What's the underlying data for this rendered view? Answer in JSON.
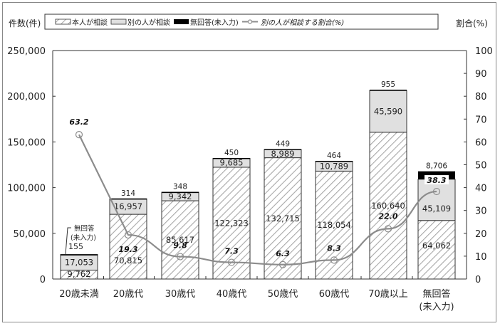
{
  "chart_data": {
    "type": "bar",
    "subtype": "stacked bar + line (dual axis)",
    "title": "",
    "ylabel_left": "件数(件)",
    "ylabel_right": "割合(%)",
    "xlabel": "",
    "ylim_left": [
      0,
      250000
    ],
    "ylim_right": [
      0,
      100
    ],
    "yticks_left": [
      "0",
      "50,000",
      "100,000",
      "150,000",
      "200,000",
      "250,000"
    ],
    "yticks_right": [
      "0",
      "10",
      "20",
      "30",
      "40",
      "50",
      "60",
      "70",
      "80",
      "90",
      "100"
    ],
    "categories": [
      "20歳未満",
      "20歳代",
      "30歳代",
      "40歳代",
      "50歳代",
      "60歳代",
      "70歳以上",
      "無回答\n(未入力)"
    ],
    "category_lines": [
      [
        "20歳未満"
      ],
      [
        "20歳代"
      ],
      [
        "30歳代"
      ],
      [
        "40歳代"
      ],
      [
        "50歳代"
      ],
      [
        "60歳代"
      ],
      [
        "70歳以上"
      ],
      [
        "無回答",
        "(未入力)"
      ]
    ],
    "series": [
      {
        "name": "本人が相談",
        "type": "bar",
        "pattern": "hatched",
        "values": [
          9762,
          70815,
          85617,
          122323,
          132715,
          118054,
          160640,
          64062
        ],
        "labels": [
          "9,762",
          "70,815",
          "85,617",
          "122,323",
          "132,715",
          "118,054",
          "160,640",
          "64,062"
        ]
      },
      {
        "name": "別の人が相談",
        "type": "bar",
        "pattern": "light-gray",
        "values": [
          17053,
          16957,
          9342,
          9685,
          8989,
          10789,
          45590,
          45109
        ],
        "labels": [
          "17,053",
          "16,957",
          "9,342",
          "9,685",
          "8,989",
          "10,789",
          "45,590",
          "45,109"
        ]
      },
      {
        "name": "無回答(未入力)",
        "type": "bar",
        "pattern": "black",
        "values": [
          155,
          314,
          348,
          450,
          449,
          464,
          955,
          8706
        ],
        "labels": [
          "155",
          "314",
          "348",
          "450",
          "449",
          "464",
          "955",
          "8,706"
        ]
      },
      {
        "name": "別の人が相談する割合(%)",
        "type": "line",
        "axis": "right",
        "values": [
          63.2,
          19.3,
          9.8,
          7.3,
          6.3,
          8.3,
          22.0,
          38.3
        ],
        "labels": [
          "63.2",
          "19.3",
          "9.8",
          "7.3",
          "6.3",
          "8.3",
          "22.0",
          "38.3"
        ]
      }
    ],
    "annotations": [
      {
        "text": "無回答\n(未入力)",
        "lines": [
          "無回答",
          "(未入力)"
        ],
        "target": "20歳未満 無回答(未入力) 155"
      }
    ],
    "legend_position": "top",
    "grid": false
  },
  "legend": {
    "items": [
      "本人が相談",
      "別の人が相談",
      "無回答(未入力)",
      "別の人が相談する割合(%)"
    ]
  },
  "colors": {
    "hatch": "#999999",
    "light_gray": "#e0e0e0",
    "black": "#000000",
    "line": "#8c8c8c"
  }
}
